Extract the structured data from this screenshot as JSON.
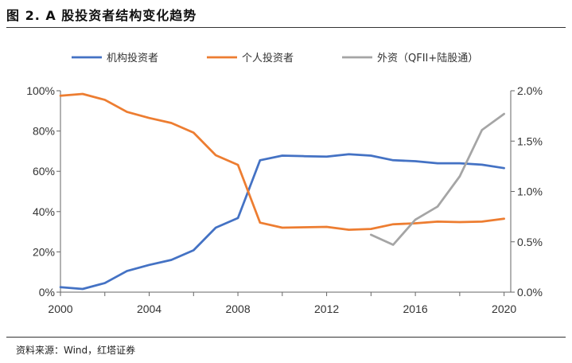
{
  "figure": {
    "title": "图 2. A 股投资者结构变化趋势",
    "source": "资料来源：Wind，红塔证券"
  },
  "chart_data": {
    "type": "line",
    "title": "",
    "xlabel": "",
    "ylabel": "",
    "x_ticks": [
      "2000",
      "2004",
      "2008",
      "2012",
      "2016",
      "2020"
    ],
    "y_left_ticks": [
      "0%",
      "20%",
      "40%",
      "60%",
      "80%",
      "100%"
    ],
    "y_right_ticks": [
      "0.0%",
      "0.5%",
      "1.0%",
      "1.5%",
      "2.0%"
    ],
    "xlim": [
      2000,
      2020.3
    ],
    "ylim_left": [
      0,
      100
    ],
    "ylim_right": [
      0,
      2.0
    ],
    "legend_position": "top",
    "grid": false,
    "series": [
      {
        "name": "机构投资者",
        "axis": "left",
        "color": "#4472c4",
        "x": [
          2000,
          2001,
          2002,
          2003,
          2004,
          2005,
          2006,
          2007,
          2008,
          2009,
          2010,
          2011,
          2012,
          2013,
          2014,
          2015,
          2016,
          2017,
          2018,
          2019,
          2020
        ],
        "values": [
          2.5,
          1.6,
          4.5,
          10.5,
          13.5,
          16,
          20.8,
          32,
          36.8,
          65.5,
          67.8,
          67.5,
          67.3,
          68.5,
          67.8,
          65.5,
          65,
          64,
          64,
          63.3,
          61.6
        ]
      },
      {
        "name": "个人投资者",
        "axis": "left",
        "color": "#ed7d31",
        "x": [
          2000,
          2001,
          2002,
          2003,
          2004,
          2005,
          2006,
          2007,
          2008,
          2009,
          2010,
          2011,
          2012,
          2013,
          2014,
          2015,
          2016,
          2017,
          2018,
          2019,
          2020
        ],
        "values": [
          97.5,
          98.4,
          95.5,
          89.5,
          86.5,
          84,
          79.2,
          68,
          63.2,
          34.5,
          32,
          32.2,
          32.4,
          31,
          31.4,
          33.7,
          34.2,
          35,
          34.8,
          35,
          36.5
        ]
      },
      {
        "name": "外资（QFII+陆股通）",
        "axis": "right",
        "color": "#a5a5a5",
        "x": [
          2014,
          2015,
          2016,
          2017,
          2018,
          2019,
          2020
        ],
        "values": [
          0.57,
          0.47,
          0.72,
          0.85,
          1.15,
          1.61,
          1.77
        ]
      }
    ]
  }
}
